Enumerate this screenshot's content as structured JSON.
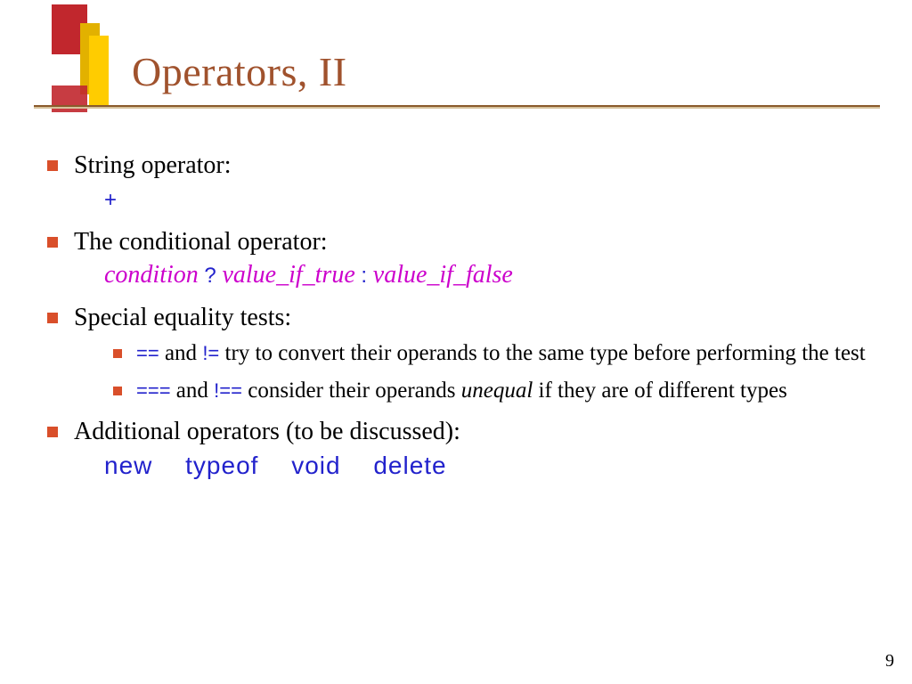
{
  "colors": {
    "bullet": "#d94f2a",
    "title": "#a0522d",
    "underline_dark": "#8a5a2b",
    "underline_light": "#d6c29c",
    "deco_red": "#c1272d",
    "deco_yellow_back": "#e2b100",
    "deco_yellow_front": "#ffcc00",
    "code_blue": "#2222cc",
    "magenta": "#cc00cc",
    "background": "#ffffff",
    "text": "#000000"
  },
  "typography": {
    "title_fontsize": 46,
    "body_fontsize": 28,
    "sub_fontsize": 25,
    "code_fontsize": 24,
    "font_serif": "Times New Roman",
    "font_code": "Verdana"
  },
  "title": "Operators, II",
  "bullets": {
    "b1": {
      "heading": "String operator:",
      "code": "+"
    },
    "b2": {
      "heading": "The conditional operator:",
      "parts": {
        "p1": "condition",
        "p2": " ? ",
        "p3": "value_if_true",
        "p4": " : ",
        "p5": "value_if_false"
      }
    },
    "b3": {
      "heading": "Special equality tests:",
      "sub1": {
        "c1": "==",
        "t1": " and ",
        "c2": "!=",
        "t2": " try to convert their operands to the same type before performing the test"
      },
      "sub2": {
        "c1": "===",
        "t1": " and ",
        "c2": "!==",
        "t2": " consider their operands ",
        "em": "unequal",
        "t3": " if they are of different types"
      }
    },
    "b4": {
      "heading": "Additional operators (to be discussed):",
      "code": "new typeof void delete"
    }
  },
  "page_number": "9"
}
